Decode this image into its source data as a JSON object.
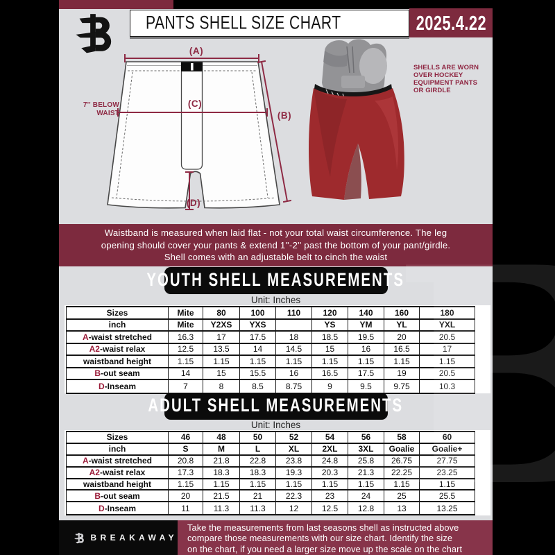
{
  "header": {
    "title": "PANTS SHELL SIZE CHART",
    "date": "2025.4.22"
  },
  "diagram": {
    "label_a": "(A)",
    "label_b": "(B)",
    "label_c": "(C)",
    "label_d": "(D)",
    "waist_note_lines": [
      "7'' BELOW",
      "WAIST"
    ],
    "photo_note_lines": [
      "SHELLS ARE WORN",
      "OVER HOCKEY",
      "EQUIPMENT PANTS",
      "OR GIRDLE"
    ]
  },
  "notice": {
    "lines": [
      "Waistband is measured when laid flat - not your total waist circumference. The leg",
      "opening should cover your pants & extend 1''-2'' past the bottom of your pant/girdle.",
      "Shell comes with an adjustable belt to cinch the waist"
    ]
  },
  "youth": {
    "heading": "YOUTH SHELL MEASUREMENTS",
    "unit": "Unit: Inches",
    "table": {
      "rows": [
        {
          "prefix": "",
          "label": "Sizes",
          "bold": true,
          "values": [
            "Mite",
            "80",
            "100",
            "110",
            "120",
            "140",
            "160",
            "180"
          ]
        },
        {
          "prefix": "",
          "label": "inch",
          "bold": true,
          "values": [
            "Mite",
            "Y2XS",
            "YXS",
            "",
            "YS",
            "YM",
            "YL",
            "YXL"
          ]
        },
        {
          "prefix": "A",
          "label": "-waist stretched",
          "bold": false,
          "values": [
            "16.3",
            "17",
            "17.5",
            "18",
            "18.5",
            "19.5",
            "20",
            "20.5"
          ]
        },
        {
          "prefix": "A2",
          "label": "-waist relax",
          "bold": false,
          "values": [
            "12.5",
            "13.5",
            "14",
            "14.5",
            "15",
            "16",
            "16.5",
            "17"
          ]
        },
        {
          "prefix": "",
          "label": "waistband height",
          "bold": false,
          "values": [
            "1.15",
            "1.15",
            "1.15",
            "1.15",
            "1.15",
            "1.15",
            "1.15",
            "1.15"
          ]
        },
        {
          "prefix": "B",
          "label": "-out seam",
          "bold": false,
          "values": [
            "14",
            "15",
            "15.5",
            "16",
            "16.5",
            "17.5",
            "19",
            "20.5"
          ]
        },
        {
          "prefix": "D",
          "label": "-Inseam",
          "bold": false,
          "values": [
            "7",
            "8",
            "8.5",
            "8.75",
            "9",
            "9.5",
            "9.75",
            "10.3"
          ]
        }
      ]
    }
  },
  "adult": {
    "heading": "ADULT SHELL MEASUREMENTS",
    "unit": "Unit: Inches",
    "table": {
      "rows": [
        {
          "prefix": "",
          "label": "Sizes",
          "bold": true,
          "values": [
            "46",
            "48",
            "50",
            "52",
            "54",
            "56",
            "58",
            "60"
          ]
        },
        {
          "prefix": "",
          "label": "inch",
          "bold": true,
          "values": [
            "S",
            "M",
            "L",
            "XL",
            "2XL",
            "3XL",
            "Goalie",
            "Goalie+"
          ]
        },
        {
          "prefix": "A",
          "label": "-waist stretched",
          "bold": false,
          "values": [
            "20.8",
            "21.8",
            "22.8",
            "23.8",
            "24.8",
            "25.8",
            "26.75",
            "27.75"
          ]
        },
        {
          "prefix": "A2",
          "label": "-waist relax",
          "bold": false,
          "values": [
            "17.3",
            "18.3",
            "18.3",
            "19.3",
            "20.3",
            "21.3",
            "22.25",
            "23.25"
          ]
        },
        {
          "prefix": "",
          "label": "waistband height",
          "bold": false,
          "values": [
            "1.15",
            "1.15",
            "1.15",
            "1.15",
            "1.15",
            "1.15",
            "1.15",
            "1.15"
          ]
        },
        {
          "prefix": "B",
          "label": "-out seam",
          "bold": false,
          "values": [
            "20",
            "21.5",
            "21",
            "22.3",
            "23",
            "24",
            "25",
            "25.5"
          ]
        },
        {
          "prefix": "D",
          "label": "-Inseam",
          "bold": false,
          "values": [
            "11",
            "11.3",
            "11.3",
            "12",
            "12.5",
            "12.8",
            "13",
            "13.25"
          ]
        }
      ]
    }
  },
  "footer": {
    "brand": "BREAKAWAY",
    "lines": [
      "Take the measurements from last seasons shell as instructed above",
      "compare those measurements  with our size chart. Identify the size",
      "on the chart, if you need a larger size move up the scale on the chart"
    ]
  },
  "colors": {
    "maroon": "#7d2a3e",
    "footer_maroon": "#87344a",
    "accent_red": "#9a1b38",
    "diagram_red": "#8e2a44",
    "page_bg": "#dcdde0",
    "banner_black": "#0b0b0b",
    "shell_red": "#9e2a2d"
  }
}
